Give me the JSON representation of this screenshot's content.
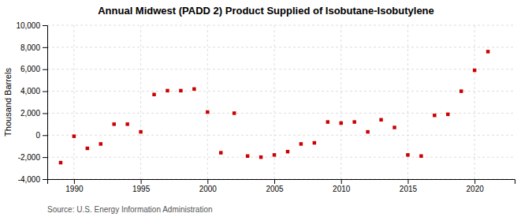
{
  "chart_data": {
    "type": "scatter",
    "title": "Annual Midwest (PADD 2) Product Supplied of Isobutane-Isobutylene",
    "ylabel": "Thousand Barrels",
    "annotations": [
      "Source: U.S. Energy Information Administration"
    ],
    "color": "#cc0000",
    "marker": "square",
    "grid": true,
    "x": [
      1989,
      1990,
      1991,
      1992,
      1993,
      1994,
      1995,
      1996,
      1997,
      1998,
      1999,
      2000,
      2001,
      2002,
      2003,
      2004,
      2005,
      2006,
      2007,
      2008,
      2009,
      2010,
      2011,
      2012,
      2013,
      2014,
      2015,
      2016,
      2017,
      2018,
      2019,
      2020,
      2021
    ],
    "values": [
      -2500,
      -100,
      -1200,
      -800,
      1000,
      1000,
      300,
      3700,
      4050,
      4050,
      4200,
      2100,
      -1600,
      2000,
      -1900,
      -2000,
      -1800,
      -1500,
      -800,
      -700,
      1200,
      1100,
      1200,
      300,
      1400,
      700,
      -1800,
      -1900,
      1800,
      1900,
      4000,
      5900,
      7600
    ],
    "xlim": [
      1988,
      2023
    ],
    "xticks": [
      1990,
      1995,
      2000,
      2005,
      2010,
      2015,
      2020
    ],
    "ylim": [
      -4000,
      10000
    ],
    "yticks": [
      {
        "value": -4000,
        "label": "-4,000"
      },
      {
        "value": -2000,
        "label": "-2,000"
      },
      0,
      {
        "value": 2000,
        "label": "2,000"
      },
      {
        "value": 4000,
        "label": "4,000"
      },
      {
        "value": 6000,
        "label": "6,000"
      },
      {
        "value": 8000,
        "label": "8,000"
      },
      {
        "value": 10000,
        "label": "10,000"
      }
    ]
  }
}
